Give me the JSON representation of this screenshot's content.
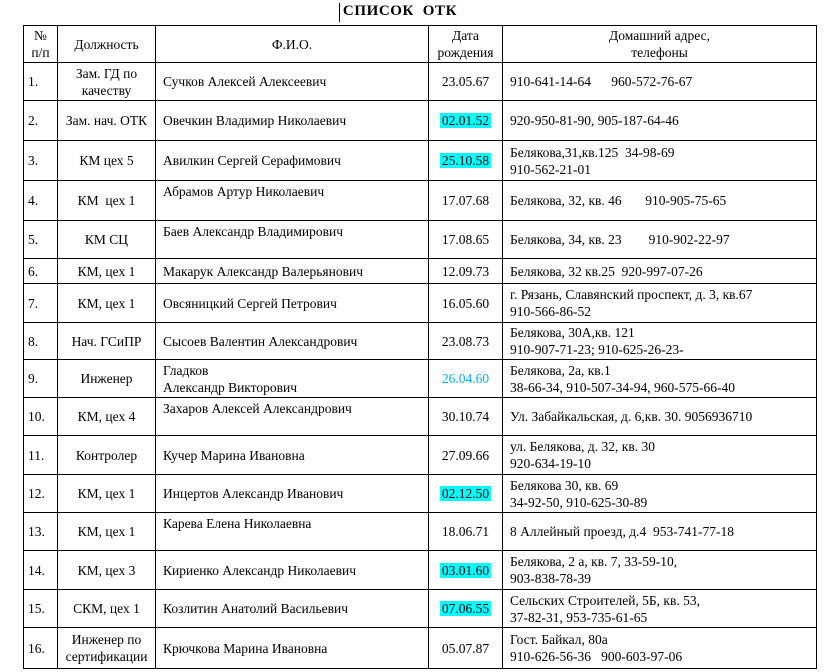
{
  "page": {
    "title": "СПИСОК  ОТК"
  },
  "colors": {
    "highlight_bg": "#00FFFF",
    "blue_date_text": "#00B0F0",
    "text": "#000000",
    "border": "#000000"
  },
  "table": {
    "columns": [
      "№\nп/п",
      "Должность",
      "Ф.И.О.",
      "Дата\nрождения",
      "Домашний адрес,\nтелефоны"
    ],
    "rows": [
      {
        "num": "1.",
        "position": "Зам. ГД по качеству",
        "name": "Сучков Алексей Алексеевич",
        "birthdate": "23.05.67",
        "date_style": "normal",
        "address": "910-641-14-64      960-572-76-67"
      },
      {
        "num": "2.",
        "position": "Зам. нач. ОТК",
        "name": "Овечкин Владимир Николаевич",
        "birthdate": "02.01.52",
        "date_style": "highlight",
        "address": "920-950-81-90, 905-187-64-46"
      },
      {
        "num": "3.",
        "position": "КМ цех 5",
        "name": "Авилкин Сергей Серафимович",
        "birthdate": "25.10.58",
        "date_style": "highlight",
        "address": "Белякова,31,кв.125  34-98-69\n910-562-21-01"
      },
      {
        "num": "4.",
        "position": "КМ  цех 1",
        "name": "Абрамов Артур Николаевич",
        "birthdate": "17.07.68",
        "date_style": "normal",
        "address": "Белякова, 32, кв. 46       910-905-75-65"
      },
      {
        "num": "5.",
        "position": "КМ СЦ",
        "name": "Баев Александр Владимирович",
        "birthdate": "17.08.65",
        "date_style": "normal",
        "address": "Белякова, 34, кв. 23        910-902-22-97"
      },
      {
        "num": "6.",
        "position": "КМ, цех 1",
        "name": "Макарук Александр Валерьянович",
        "birthdate": "12.09.73",
        "date_style": "normal",
        "address": "Белякова, 32 кв.25  920-997-07-26"
      },
      {
        "num": "7.",
        "position": "КМ, цех 1",
        "name": "Овсяницкий Сергей Петрович",
        "birthdate": "16.05.60",
        "date_style": "normal",
        "address": "г. Рязань, Славянский проспект, д. 3, кв.67\n910-566-86-52"
      },
      {
        "num": "8.",
        "position": "Нач. ГСиПР",
        "name": "Сысоев Валентин Александрович",
        "birthdate": "23.08.73",
        "date_style": "normal",
        "address": "Белякова, 30А,кв. 121\n910-907-71-23; 910-625-26-23-"
      },
      {
        "num": "9.",
        "position": "Инженер",
        "name": "Гладков\nАлександр Викторович",
        "birthdate": "26.04.60",
        "date_style": "blue",
        "address": "Белякова, 2а, кв.1\n38-66-34, 910-507-34-94, 960-575-66-40"
      },
      {
        "num": "10.",
        "position": "КМ, цех 4",
        "name": "Захаров Алексей Александрович",
        "birthdate": "30.10.74",
        "date_style": "normal",
        "address": "Ул. Забайкальская, д. 6,кв. 30. 9056936710"
      },
      {
        "num": "11.",
        "position": "Контролер",
        "name": "Кучер Марина Ивановна",
        "birthdate": "27.09.66",
        "date_style": "normal",
        "address": "ул. Белякова, д. 32, кв. 30\n920-634-19-10"
      },
      {
        "num": "12.",
        "position": "КМ, цех 1",
        "name": "Инцертов Александр Иванович",
        "birthdate": "02.12.50",
        "date_style": "highlight",
        "address": "Белякова 30, кв. 69\n34-92-50, 910-625-30-89"
      },
      {
        "num": "13.",
        "position": "КМ, цех 1",
        "name": "Карева Елена Николаевна",
        "birthdate": "18.06.71",
        "date_style": "normal",
        "address": "8 Аллейный проезд, д.4  953-741-77-18"
      },
      {
        "num": "14.",
        "position": "КМ, цех 3",
        "name": "Кириенко Александр Николаевич",
        "birthdate": "03.01.60",
        "date_style": "highlight",
        "address": "Белякова, 2 а, кв. 7, 33-59-10,\n903-838-78-39"
      },
      {
        "num": "15.",
        "position": "СКМ, цех 1",
        "name": "Козлитин Анатолий Васильевич",
        "birthdate": "07.06.55",
        "date_style": "highlight",
        "address": "Сельских Строителей, 5Б, кв. 53,\n37-82-31, 953-735-61-65"
      },
      {
        "num": "16.",
        "position": "Инженер по сертификации",
        "name": "Крючкова Марина Ивановна",
        "birthdate": "05.07.87",
        "date_style": "normal",
        "address": "Гост. Байкал, 80а\n910-626-56-36   900-603-97-06"
      }
    ]
  }
}
